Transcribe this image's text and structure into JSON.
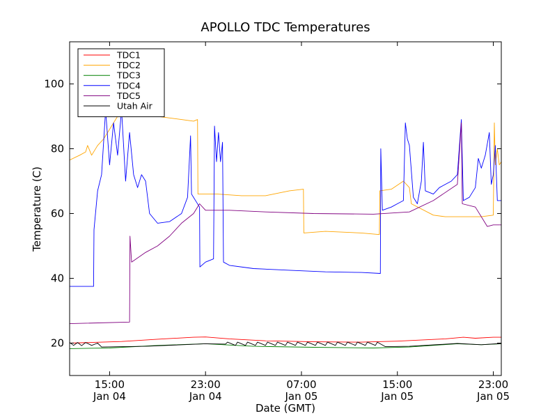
{
  "chart_data": {
    "type": "line",
    "title": "APOLLO TDC Temperatures",
    "xlabel": "Date (GMT)",
    "ylabel": "Temperature (C)",
    "ylim": [
      10,
      113
    ],
    "xlim": [
      "2015-01-04 11:40",
      "2015-01-05 23:40"
    ],
    "yticks": [
      20,
      40,
      60,
      80,
      100
    ],
    "xticks": [
      {
        "at": "2015-01-04 15:00",
        "time": "15:00",
        "date": "Jan 04"
      },
      {
        "at": "2015-01-04 23:00",
        "time": "23:00",
        "date": "Jan 04"
      },
      {
        "at": "2015-01-05 07:00",
        "time": "07:00",
        "date": "Jan 05"
      },
      {
        "at": "2015-01-05 15:00",
        "time": "15:00",
        "date": "Jan 05"
      },
      {
        "at": "2015-01-05 23:00",
        "time": "23:00",
        "date": "Jan 05"
      }
    ],
    "grid": false,
    "legend_position": "top-left",
    "series": [
      {
        "name": "TDC1",
        "color": "#ff0000",
        "points": [
          [
            "2015-01-04 11:40",
            20.0
          ],
          [
            "2015-01-04 16:00",
            20.5
          ],
          [
            "2015-01-04 19:00",
            21.2
          ],
          [
            "2015-01-04 22:00",
            21.8
          ],
          [
            "2015-01-04 23:00",
            21.9
          ],
          [
            "2015-01-05 01:00",
            21.3
          ],
          [
            "2015-01-05 04:00",
            20.7
          ],
          [
            "2015-01-05 08:00",
            20.4
          ],
          [
            "2015-01-05 12:00",
            20.3
          ],
          [
            "2015-01-05 15:00",
            20.6
          ],
          [
            "2015-01-05 19:00",
            21.3
          ],
          [
            "2015-01-05 20:30",
            21.8
          ],
          [
            "2015-01-05 21:30",
            21.5
          ],
          [
            "2015-01-05 23:00",
            21.8
          ],
          [
            "2015-01-05 23:40",
            21.8
          ]
        ]
      },
      {
        "name": "TDC2",
        "color": "#ffa500",
        "points": [
          [
            "2015-01-04 11:40",
            76.5
          ],
          [
            "2015-01-04 12:30",
            78
          ],
          [
            "2015-01-04 13:00",
            79
          ],
          [
            "2015-01-04 13:10",
            81
          ],
          [
            "2015-01-04 13:30",
            78
          ],
          [
            "2015-01-04 14:00",
            81
          ],
          [
            "2015-01-04 14:30",
            83
          ],
          [
            "2015-01-04 15:00",
            86
          ],
          [
            "2015-01-04 15:30",
            89
          ],
          [
            "2015-01-04 16:00",
            92
          ],
          [
            "2015-01-04 17:00",
            91
          ],
          [
            "2015-01-04 18:00",
            90.5
          ],
          [
            "2015-01-04 19:00",
            90
          ],
          [
            "2015-01-04 20:00",
            89.5
          ],
          [
            "2015-01-04 21:00",
            89
          ],
          [
            "2015-01-04 22:00",
            88.5
          ],
          [
            "2015-01-04 22:20",
            89
          ],
          [
            "2015-01-04 22:22",
            66
          ],
          [
            "2015-01-05 00:00",
            66
          ],
          [
            "2015-01-05 02:00",
            65.5
          ],
          [
            "2015-01-05 04:00",
            65.5
          ],
          [
            "2015-01-05 06:00",
            67
          ],
          [
            "2015-01-05 07:10",
            67.5
          ],
          [
            "2015-01-05 07:12",
            54
          ],
          [
            "2015-01-05 09:00",
            54.5
          ],
          [
            "2015-01-05 12:00",
            54
          ],
          [
            "2015-01-05 13:30",
            53.5
          ],
          [
            "2015-01-05 13:32",
            67
          ],
          [
            "2015-01-05 14:30",
            67.5
          ],
          [
            "2015-01-05 15:30",
            70
          ],
          [
            "2015-01-05 16:00",
            68
          ],
          [
            "2015-01-05 16:10",
            63
          ],
          [
            "2015-01-05 18:00",
            59.5
          ],
          [
            "2015-01-05 19:00",
            59
          ],
          [
            "2015-01-05 21:00",
            59
          ],
          [
            "2015-01-05 22:00",
            59
          ],
          [
            "2015-01-05 23:00",
            59.5
          ],
          [
            "2015-01-05 23:05",
            88
          ],
          [
            "2015-01-05 23:10",
            75
          ],
          [
            "2015-01-05 23:20",
            80
          ],
          [
            "2015-01-05 23:30",
            75
          ],
          [
            "2015-01-05 23:40",
            76
          ]
        ]
      },
      {
        "name": "TDC3",
        "color": "#008000",
        "points": [
          [
            "2015-01-04 11:40",
            18.3
          ],
          [
            "2015-01-04 15:00",
            18.5
          ],
          [
            "2015-01-04 19:00",
            19.3
          ],
          [
            "2015-01-04 23:00",
            19.8
          ],
          [
            "2015-01-05 03:00",
            19.0
          ],
          [
            "2015-01-05 08:00",
            18.7
          ],
          [
            "2015-01-05 13:00",
            18.5
          ],
          [
            "2015-01-05 16:00",
            18.8
          ],
          [
            "2015-01-05 20:00",
            19.8
          ],
          [
            "2015-01-05 22:00",
            19.5
          ],
          [
            "2015-01-05 23:40",
            19.8
          ]
        ]
      },
      {
        "name": "TDC4",
        "color": "#0000ff",
        "points": [
          [
            "2015-01-04 11:40",
            37.5
          ],
          [
            "2015-01-04 13:40",
            37.5
          ],
          [
            "2015-01-04 13:42",
            55
          ],
          [
            "2015-01-04 14:00",
            67
          ],
          [
            "2015-01-04 14:20",
            72
          ],
          [
            "2015-01-04 14:40",
            92
          ],
          [
            "2015-01-04 15:00",
            75
          ],
          [
            "2015-01-04 15:20",
            88
          ],
          [
            "2015-01-04 15:40",
            78
          ],
          [
            "2015-01-04 16:00",
            92
          ],
          [
            "2015-01-04 16:20",
            70
          ],
          [
            "2015-01-04 16:40",
            85
          ],
          [
            "2015-01-04 17:00",
            72
          ],
          [
            "2015-01-04 17:20",
            68
          ],
          [
            "2015-01-04 17:40",
            72
          ],
          [
            "2015-01-04 18:00",
            70
          ],
          [
            "2015-01-04 18:20",
            60
          ],
          [
            "2015-01-04 19:00",
            57
          ],
          [
            "2015-01-04 20:00",
            57.5
          ],
          [
            "2015-01-04 21:00",
            60
          ],
          [
            "2015-01-04 21:30",
            65
          ],
          [
            "2015-01-04 21:45",
            84
          ],
          [
            "2015-01-04 21:50",
            66
          ],
          [
            "2015-01-04 22:30",
            62
          ],
          [
            "2015-01-04 22:32",
            43.5
          ],
          [
            "2015-01-04 23:00",
            45
          ],
          [
            "2015-01-04 23:40",
            46
          ],
          [
            "2015-01-04 23:45",
            87
          ],
          [
            "2015-01-04 23:55",
            76
          ],
          [
            "2015-01-05 00:05",
            85
          ],
          [
            "2015-01-05 00:15",
            76
          ],
          [
            "2015-01-05 00:25",
            82
          ],
          [
            "2015-01-05 00:30",
            45
          ],
          [
            "2015-01-05 01:00",
            44
          ],
          [
            "2015-01-05 03:00",
            43
          ],
          [
            "2015-01-05 06:00",
            42.5
          ],
          [
            "2015-01-05 09:00",
            42
          ],
          [
            "2015-01-05 12:00",
            41.8
          ],
          [
            "2015-01-05 13:35",
            41.5
          ],
          [
            "2015-01-05 13:37",
            80
          ],
          [
            "2015-01-05 13:45",
            61
          ],
          [
            "2015-01-05 14:30",
            62
          ],
          [
            "2015-01-05 15:00",
            63
          ],
          [
            "2015-01-05 15:30",
            64
          ],
          [
            "2015-01-05 15:40",
            88
          ],
          [
            "2015-01-05 15:50",
            83
          ],
          [
            "2015-01-05 16:00",
            81
          ],
          [
            "2015-01-05 16:20",
            65
          ],
          [
            "2015-01-05 16:30",
            64
          ],
          [
            "2015-01-05 16:40",
            63
          ],
          [
            "2015-01-05 17:00",
            70
          ],
          [
            "2015-01-05 17:10",
            82
          ],
          [
            "2015-01-05 17:20",
            67
          ],
          [
            "2015-01-05 18:00",
            66
          ],
          [
            "2015-01-05 18:30",
            68
          ],
          [
            "2015-01-05 19:30",
            70
          ],
          [
            "2015-01-05 20:00",
            72
          ],
          [
            "2015-01-05 20:20",
            89
          ],
          [
            "2015-01-05 20:30",
            64
          ],
          [
            "2015-01-05 21:00",
            65
          ],
          [
            "2015-01-05 21:30",
            68
          ],
          [
            "2015-01-05 21:45",
            77
          ],
          [
            "2015-01-05 22:00",
            74
          ],
          [
            "2015-01-05 22:20",
            78
          ],
          [
            "2015-01-05 22:40",
            85
          ],
          [
            "2015-01-05 22:50",
            69
          ],
          [
            "2015-01-05 23:00",
            72
          ],
          [
            "2015-01-05 23:10",
            81
          ],
          [
            "2015-01-05 23:20",
            64
          ],
          [
            "2015-01-05 23:40",
            64
          ]
        ]
      },
      {
        "name": "TDC5",
        "color": "#800080",
        "points": [
          [
            "2015-01-04 11:40",
            26
          ],
          [
            "2015-01-04 16:40",
            26.5
          ],
          [
            "2015-01-04 16:42",
            53
          ],
          [
            "2015-01-04 16:50",
            45
          ],
          [
            "2015-01-04 18:00",
            48
          ],
          [
            "2015-01-04 19:00",
            50
          ],
          [
            "2015-01-04 20:00",
            53
          ],
          [
            "2015-01-04 21:00",
            57
          ],
          [
            "2015-01-04 22:00",
            60
          ],
          [
            "2015-01-04 22:30",
            63
          ],
          [
            "2015-01-04 23:00",
            61
          ],
          [
            "2015-01-05 01:00",
            61
          ],
          [
            "2015-01-05 04:00",
            60.5
          ],
          [
            "2015-01-05 08:00",
            60
          ],
          [
            "2015-01-05 13:00",
            59.8
          ],
          [
            "2015-01-05 16:00",
            60.5
          ],
          [
            "2015-01-05 18:00",
            64
          ],
          [
            "2015-01-05 20:00",
            69
          ],
          [
            "2015-01-05 20:20",
            88
          ],
          [
            "2015-01-05 20:25",
            63
          ],
          [
            "2015-01-05 21:30",
            62
          ],
          [
            "2015-01-05 22:00",
            59
          ],
          [
            "2015-01-05 22:30",
            56
          ],
          [
            "2015-01-05 23:00",
            56.5
          ],
          [
            "2015-01-05 23:40",
            56.5
          ]
        ]
      },
      {
        "name": "Utah Air",
        "color": "#000000",
        "points": [
          [
            "2015-01-04 11:40",
            20.2
          ],
          [
            "2015-01-04 12:00",
            19.3
          ],
          [
            "2015-01-04 12:20",
            20.2
          ],
          [
            "2015-01-04 12:40",
            19.2
          ],
          [
            "2015-01-04 13:00",
            20.2
          ],
          [
            "2015-01-04 13:30",
            19.3
          ],
          [
            "2015-01-04 14:00",
            20.0
          ],
          [
            "2015-01-04 14:20",
            18.8
          ],
          [
            "2015-01-04 18:00",
            19.0
          ],
          [
            "2015-01-04 23:00",
            19.8
          ],
          [
            "2015-01-05 00:40",
            19.7
          ],
          [
            "2015-01-05 00:50",
            20.3
          ],
          [
            "2015-01-05 01:30",
            19.3
          ],
          [
            "2015-01-05 01:40",
            20.3
          ],
          [
            "2015-01-05 02:20",
            19.3
          ],
          [
            "2015-01-05 02:30",
            20.3
          ],
          [
            "2015-01-05 03:10",
            19.3
          ],
          [
            "2015-01-05 03:20",
            20.3
          ],
          [
            "2015-01-05 04:00",
            19.3
          ],
          [
            "2015-01-05 04:10",
            20.3
          ],
          [
            "2015-01-05 04:50",
            19.3
          ],
          [
            "2015-01-05 05:00",
            20.3
          ],
          [
            "2015-01-05 05:40",
            19.3
          ],
          [
            "2015-01-05 05:50",
            20.3
          ],
          [
            "2015-01-05 06:30",
            19.3
          ],
          [
            "2015-01-05 06:40",
            20.3
          ],
          [
            "2015-01-05 07:20",
            19.3
          ],
          [
            "2015-01-05 07:30",
            20.3
          ],
          [
            "2015-01-05 08:10",
            19.3
          ],
          [
            "2015-01-05 08:20",
            20.3
          ],
          [
            "2015-01-05 09:00",
            19.3
          ],
          [
            "2015-01-05 09:10",
            20.3
          ],
          [
            "2015-01-05 09:50",
            19.3
          ],
          [
            "2015-01-05 10:00",
            20.3
          ],
          [
            "2015-01-05 10:40",
            19.3
          ],
          [
            "2015-01-05 10:50",
            20.3
          ],
          [
            "2015-01-05 11:30",
            19.3
          ],
          [
            "2015-01-05 11:40",
            20.3
          ],
          [
            "2015-01-05 12:20",
            19.3
          ],
          [
            "2015-01-05 12:30",
            20.3
          ],
          [
            "2015-01-05 13:10",
            19.3
          ],
          [
            "2015-01-05 13:20",
            20.3
          ],
          [
            "2015-01-05 14:00",
            18.9
          ],
          [
            "2015-01-05 16:00",
            19.0
          ],
          [
            "2015-01-05 20:00",
            19.9
          ],
          [
            "2015-01-05 22:00",
            19.5
          ],
          [
            "2015-01-05 23:40",
            19.9
          ]
        ]
      }
    ]
  }
}
